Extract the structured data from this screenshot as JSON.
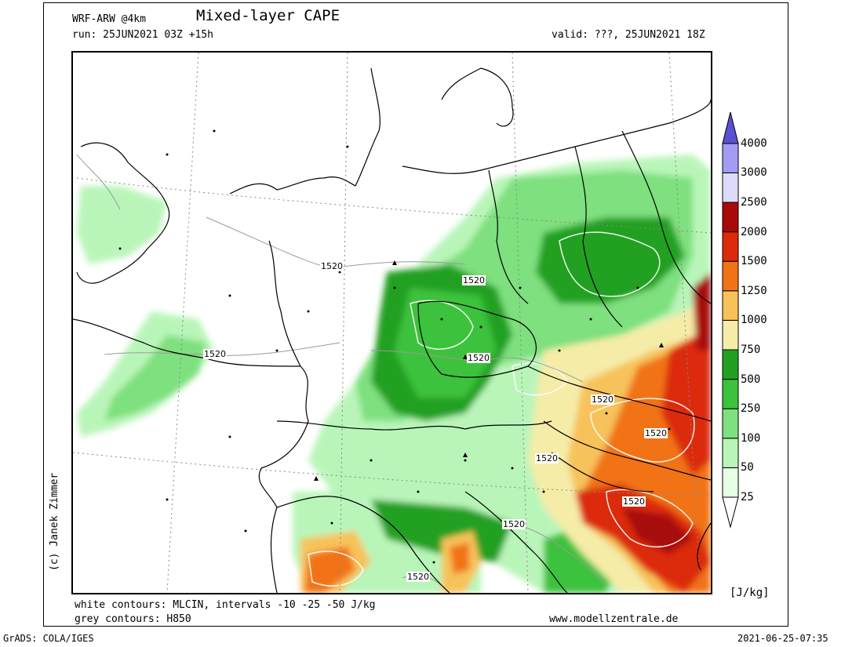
{
  "header": {
    "model": "WRF-ARW @4km",
    "title": "Mixed-layer CAPE",
    "run": "run: 25JUN2021 03Z +15h",
    "valid": "valid: ???, 25JUN2021 18Z"
  },
  "colorbar": {
    "unit": "[J/kg]",
    "levels": [
      {
        "label": "25",
        "color": "#e6ffe6"
      },
      {
        "label": "50",
        "color": "#b9f5b9"
      },
      {
        "label": "100",
        "color": "#7ee07e"
      },
      {
        "label": "250",
        "color": "#3cc23c"
      },
      {
        "label": "500",
        "color": "#22a022"
      },
      {
        "label": "750",
        "color": "#f5eca8"
      },
      {
        "label": "1000",
        "color": "#f7c25a"
      },
      {
        "label": "1250",
        "color": "#f17318"
      },
      {
        "label": "1500",
        "color": "#dc2a0a"
      },
      {
        "label": "2000",
        "color": "#a80a0a"
      },
      {
        "label": "2500",
        "color": "#dcdcfa"
      },
      {
        "label": "3000",
        "color": "#a49cf2"
      },
      {
        "label": "4000",
        "color": "#5a50d2"
      }
    ],
    "top_color": "#5a50d2"
  },
  "contour_labels": [
    "1520",
    "1520",
    "1520",
    "1520",
    "1520",
    "1520",
    "1520",
    "1520",
    "1520",
    "1520"
  ],
  "footer": {
    "line1": "white contours: MLCIN, intervals -10 -25 -50 J/kg",
    "line2": "grey contours: H850",
    "website": "www.modellzentrale.de",
    "copyright": "(c) Janek Zimmer",
    "grads": "GrADS: COLA/IGES",
    "timestamp": "2021-06-25-07:35"
  }
}
